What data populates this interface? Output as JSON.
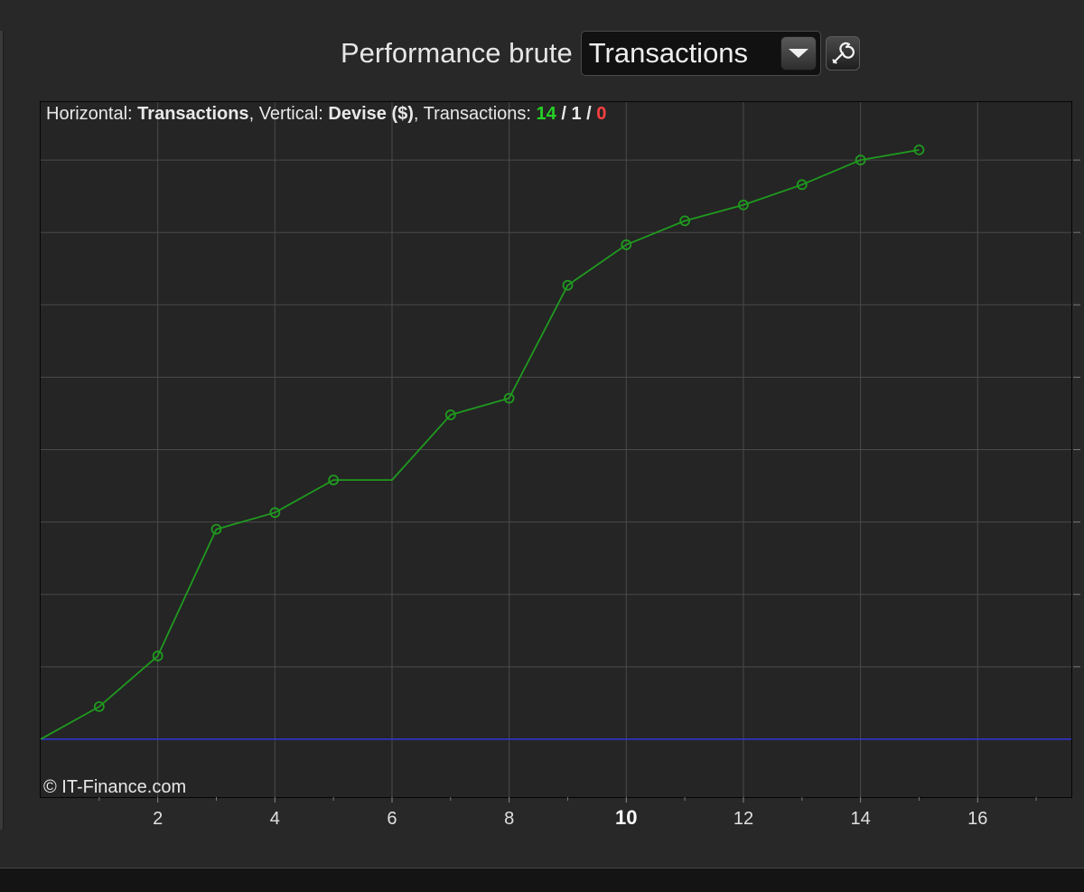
{
  "header": {
    "title": "Performance brute",
    "selected": "Transactions"
  },
  "info": {
    "horizontal_label": "Horizontal:",
    "horizontal_value": "Transactions",
    "vertical_label": "Vertical:",
    "vertical_value": "Devise ($)",
    "transactions_label": "Transactions:",
    "count_win": "14",
    "count_flat": "1",
    "count_loss": "0"
  },
  "copyright": "© IT-Finance.com",
  "colors": {
    "line": "#1f9a1f",
    "baseline": "#3333dd",
    "win": "#26d026",
    "loss": "#ff4040"
  },
  "chart_data": {
    "type": "line",
    "xlabel": "Transactions",
    "ylabel": "Devise ($)",
    "xlim": [
      0,
      17.6
    ],
    "ylim": [
      -0.8,
      8.8
    ],
    "x_ticks": [
      2,
      4,
      6,
      8,
      10,
      12,
      14,
      16
    ],
    "x_tick_labels": [
      "2",
      "4",
      "6",
      "8",
      "10",
      "12",
      "14",
      "16"
    ],
    "y_gridlines": [
      1,
      2,
      3,
      4,
      5,
      6,
      7,
      8
    ],
    "baseline_y": 0,
    "grid": true,
    "series": [
      {
        "x": [
          0,
          1,
          2,
          3,
          4,
          5,
          6,
          7,
          8,
          9,
          10,
          11,
          12,
          13,
          14,
          15
        ],
        "y": [
          0,
          0.45,
          1.15,
          2.9,
          3.13,
          3.58,
          3.58,
          4.48,
          4.71,
          6.27,
          6.83,
          7.16,
          7.38,
          7.66,
          8.0,
          8.14
        ],
        "markers": [
          false,
          true,
          true,
          true,
          true,
          true,
          false,
          true,
          true,
          true,
          true,
          true,
          true,
          true,
          true,
          true
        ]
      }
    ]
  }
}
